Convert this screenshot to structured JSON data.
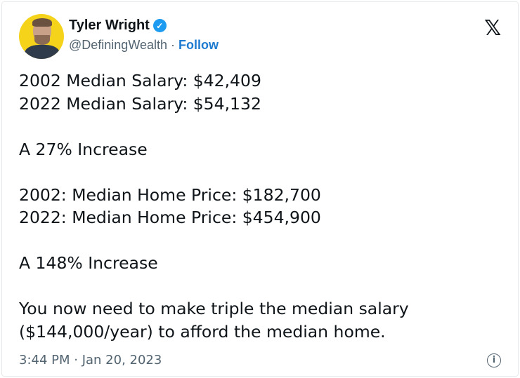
{
  "author": {
    "name": "Tyler Wright",
    "handle": "@DefiningWealth",
    "separator": "·",
    "follow_label": "Follow",
    "verified": true
  },
  "brand_icon": "x-logo-icon",
  "tweet": {
    "lines": [
      "2002 Median Salary: $42,409",
      "2022 Median Salary: $54,132",
      "",
      "A 27% Increase",
      "",
      "2002: Median Home Price: $182,700",
      "2022: Median Home Price: $454,900",
      "",
      "A 148% Increase",
      "",
      "You now need to make triple the median salary",
      "($144,000/year) to afford the median home."
    ]
  },
  "timestamp": "3:44 PM · Jan 20, 2023",
  "colors": {
    "accent": "#1d9bf0",
    "follow": "#1d7bd0",
    "muted": "#536471",
    "avatar_bg": "#f4d31a"
  }
}
